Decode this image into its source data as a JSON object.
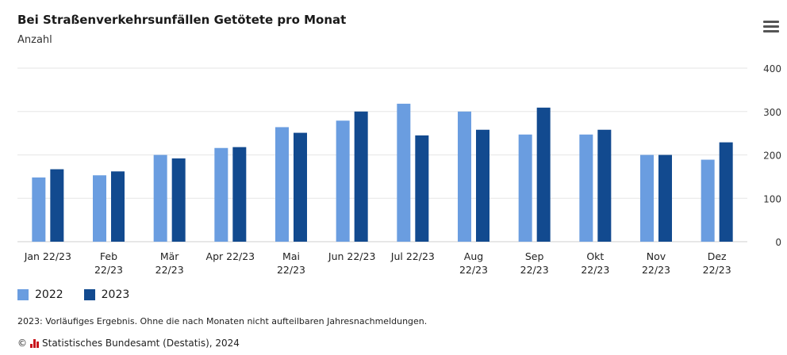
{
  "header": {
    "title": "Bei Straßenverkehrsunfällen Getötete pro Monat",
    "subtitle": "Anzahl"
  },
  "menu": {
    "icon": "hamburger-menu-icon"
  },
  "colors": {
    "series_2022": "#6a9de0",
    "series_2023": "#124a8f",
    "grid": "#e6e6e6"
  },
  "chart_data": {
    "type": "bar",
    "categories": [
      [
        "Jan 22/23"
      ],
      [
        "Feb",
        "22/23"
      ],
      [
        "Mär",
        "22/23"
      ],
      [
        "Apr 22/23"
      ],
      [
        "Mai",
        "22/23"
      ],
      [
        "Jun 22/23"
      ],
      [
        "Jul 22/23"
      ],
      [
        "Aug",
        "22/23"
      ],
      [
        "Sep",
        "22/23"
      ],
      [
        "Okt",
        "22/23"
      ],
      [
        "Nov",
        "22/23"
      ],
      [
        "Dez",
        "22/23"
      ]
    ],
    "series": [
      {
        "name": "2022",
        "values": [
          148,
          153,
          200,
          216,
          264,
          279,
          318,
          300,
          247,
          247,
          200,
          189
        ]
      },
      {
        "name": "2023",
        "values": [
          167,
          162,
          192,
          218,
          251,
          300,
          245,
          258,
          309,
          258,
          200,
          229
        ]
      }
    ],
    "ylim": [
      0,
      400
    ],
    "yticks": [
      0,
      100,
      200,
      300,
      400
    ],
    "grid": true,
    "y_axis_position": "right",
    "legend_position": "bottom-left"
  },
  "footnote": "2023: Vorläufiges Ergebnis. Ohne die nach Monaten nicht aufteilbaren Jahresnachmeldungen.",
  "source": {
    "copyright": "©",
    "text": "Statistisches Bundesamt (Destatis), 2024"
  }
}
